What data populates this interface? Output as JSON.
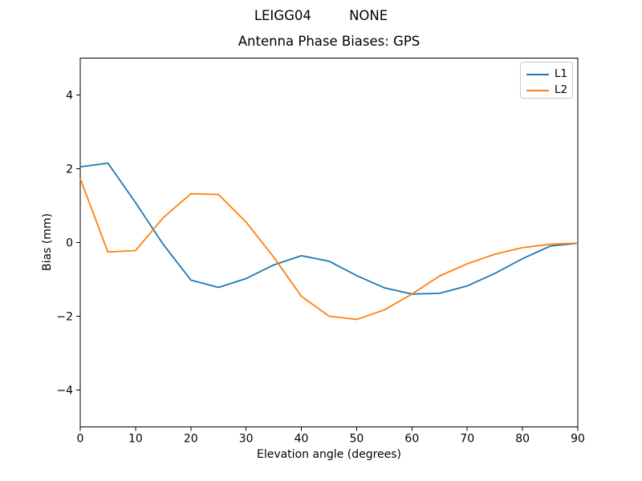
{
  "figure": {
    "suptitle": "LEIGG04         NONE"
  },
  "chart_data": {
    "type": "line",
    "title": "Antenna Phase Biases: GPS",
    "xlabel": "Elevation angle (degrees)",
    "ylabel": "Bias (mm)",
    "xlim": [
      0,
      90
    ],
    "ylim": [
      -5,
      5
    ],
    "xticks": [
      0,
      10,
      20,
      30,
      40,
      50,
      60,
      70,
      80,
      90
    ],
    "yticks": [
      -4,
      -2,
      0,
      2,
      4
    ],
    "grid": false,
    "legend_position": "upper right",
    "x": [
      0,
      5,
      10,
      15,
      20,
      25,
      30,
      35,
      40,
      45,
      50,
      55,
      60,
      65,
      70,
      75,
      80,
      85,
      90
    ],
    "series": [
      {
        "name": "L1",
        "color": "#1f77b4",
        "values": [
          2.05,
          2.15,
          1.08,
          -0.05,
          -1.02,
          -1.22,
          -0.98,
          -0.61,
          -0.36,
          -0.51,
          -0.9,
          -1.23,
          -1.4,
          -1.38,
          -1.18,
          -0.84,
          -0.44,
          -0.1,
          -0.02
        ]
      },
      {
        "name": "L2",
        "color": "#ff7f0e",
        "values": [
          1.73,
          -0.26,
          -0.22,
          0.67,
          1.32,
          1.3,
          0.55,
          -0.4,
          -1.46,
          -2.0,
          -2.09,
          -1.83,
          -1.4,
          -0.91,
          -0.58,
          -0.32,
          -0.14,
          -0.05,
          -0.02
        ]
      }
    ]
  }
}
